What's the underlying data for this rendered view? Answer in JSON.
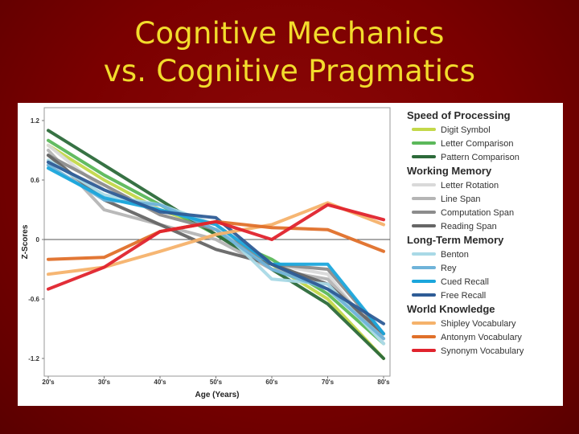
{
  "slide": {
    "title_line1": "Cognitive Mechanics",
    "title_line2": "vs. Cognitive Pragmatics",
    "colors": {
      "background": "#7a0000",
      "title": "#f2dc2c"
    }
  },
  "chart_data": {
    "type": "line",
    "xlabel": "Age (Years)",
    "ylabel": "Z-Scores",
    "categories": [
      "20's",
      "30's",
      "40's",
      "50's",
      "60's",
      "70's",
      "80's"
    ],
    "yticks": [
      "1.2",
      "0.6",
      "0",
      "-0.6",
      "-1.2"
    ],
    "ytick_values": [
      1.2,
      0.6,
      0,
      -0.6,
      -1.2
    ],
    "ylim": [
      -1.25,
      1.25
    ],
    "grid": false,
    "legend_position": "right",
    "groups": [
      {
        "title": "Speed of Processing",
        "series": [
          {
            "name": "Digit Symbol",
            "color": "#c3d84a",
            "values": [
              0.95,
              0.6,
              0.3,
              0.1,
              -0.25,
              -0.6,
              -1.2
            ]
          },
          {
            "name": "Letter Comparison",
            "color": "#5bb85a",
            "values": [
              1.0,
              0.65,
              0.35,
              0.05,
              -0.2,
              -0.55,
              -1.05
            ]
          },
          {
            "name": "Pattern Comparison",
            "color": "#2c6a3a",
            "values": [
              1.1,
              0.75,
              0.4,
              0.05,
              -0.3,
              -0.65,
              -1.2
            ]
          }
        ]
      },
      {
        "title": "Working Memory",
        "series": [
          {
            "name": "Letter Rotation",
            "color": "#d9d9d9",
            "values": [
              0.95,
              0.5,
              0.3,
              0.15,
              -0.25,
              -0.35,
              -1.05
            ]
          },
          {
            "name": "Line Span",
            "color": "#b5b5b5",
            "values": [
              0.9,
              0.3,
              0.15,
              0.0,
              -0.3,
              -0.4,
              -1.0
            ]
          },
          {
            "name": "Computation Span",
            "color": "#8c8c8c",
            "values": [
              0.85,
              0.55,
              0.25,
              0.1,
              -0.25,
              -0.3,
              -0.95
            ]
          },
          {
            "name": "Reading Span",
            "color": "#666666",
            "values": [
              0.85,
              0.4,
              0.15,
              -0.1,
              -0.25,
              -0.45,
              -0.95
            ]
          }
        ]
      },
      {
        "title": "Long-Term Memory",
        "series": [
          {
            "name": "Benton",
            "color": "#a9d9e6",
            "values": [
              0.8,
              0.45,
              0.35,
              0.15,
              -0.4,
              -0.45,
              -1.05
            ]
          },
          {
            "name": "Rey",
            "color": "#6fb3d9",
            "values": [
              0.75,
              0.4,
              0.35,
              0.1,
              -0.3,
              -0.5,
              -1.0
            ]
          },
          {
            "name": "Cued Recall",
            "color": "#1ba6dc",
            "values": [
              0.72,
              0.42,
              0.3,
              0.15,
              -0.25,
              -0.25,
              -0.95
            ]
          },
          {
            "name": "Free Recall",
            "color": "#2e5c96",
            "values": [
              0.78,
              0.5,
              0.28,
              0.22,
              -0.25,
              -0.5,
              -0.85
            ]
          }
        ]
      },
      {
        "title": "World Knowledge",
        "series": [
          {
            "name": "Shipley Vocabulary",
            "color": "#f5b26b",
            "values": [
              -0.35,
              -0.28,
              -0.12,
              0.05,
              0.15,
              0.37,
              0.15
            ]
          },
          {
            "name": "Antonym Vocabulary",
            "color": "#e0702a",
            "values": [
              -0.2,
              -0.18,
              0.08,
              0.18,
              0.12,
              0.1,
              -0.12
            ]
          },
          {
            "name": "Synonym Vocabulary",
            "color": "#e0232d",
            "values": [
              -0.5,
              -0.28,
              0.08,
              0.18,
              0.0,
              0.35,
              0.2
            ]
          }
        ]
      }
    ]
  }
}
